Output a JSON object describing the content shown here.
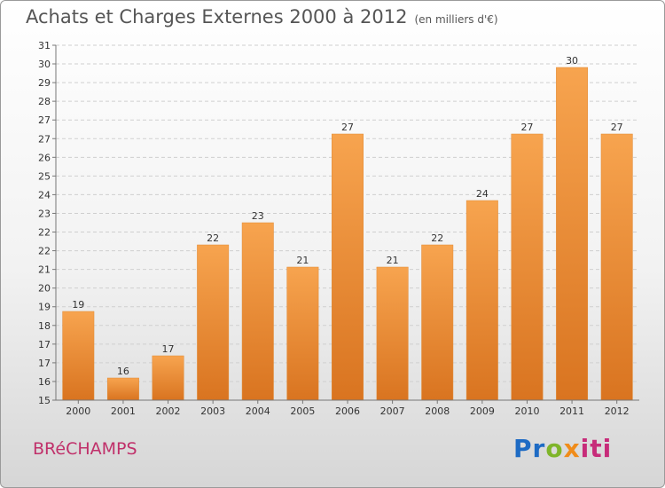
{
  "chart_data": {
    "type": "bar",
    "title": "Achats et Charges Externes 2000 à 2012",
    "subtitle": "(en milliers d'€)",
    "categories": [
      "2000",
      "2001",
      "2002",
      "2003",
      "2004",
      "2005",
      "2006",
      "2007",
      "2008",
      "2009",
      "2010",
      "2011",
      "2012"
    ],
    "values": [
      19,
      16,
      17,
      22,
      23,
      21,
      27,
      21,
      22,
      24,
      27,
      30,
      27
    ],
    "value_labels": [
      "19",
      "16",
      "17",
      "22",
      "23",
      "21",
      "27",
      "21",
      "22",
      "24",
      "27",
      "30",
      "27"
    ],
    "yticks": [
      "15",
      "16",
      "17",
      "17",
      "18",
      "19",
      "20",
      "21",
      "22",
      "22",
      "23",
      "24",
      "25",
      "26",
      "27",
      "27",
      "28",
      "29",
      "30",
      "31"
    ],
    "ylim": [
      15,
      31
    ],
    "grid": true,
    "bar_color_top": "#f7a44f",
    "bar_color_bottom": "#d97420",
    "xlabel": "",
    "ylabel": ""
  },
  "commune": "BRéCHAMPS",
  "logo": {
    "p": "Pr",
    "o": "o",
    "x": "x",
    "i": "iti"
  }
}
